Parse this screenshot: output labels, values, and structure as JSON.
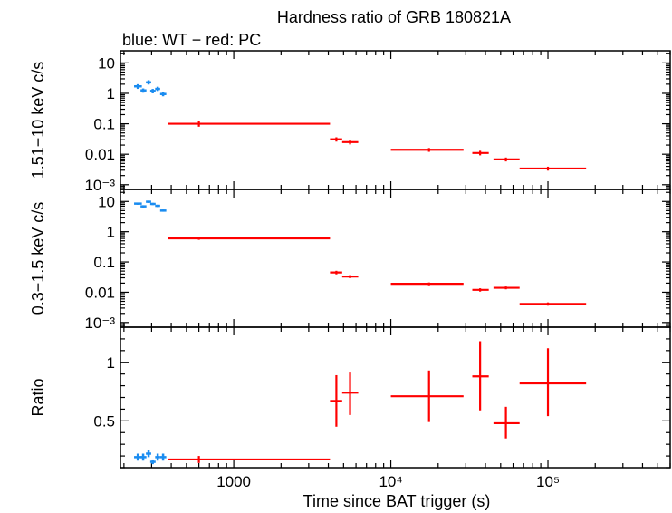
{
  "title": "Hardness ratio of GRB 180821A",
  "subtitle": "blue: WT − red: PC",
  "xlabel": "Time since BAT trigger (s)",
  "colors": {
    "WT": "#1a8cf0",
    "PC": "#ff0000",
    "axis": "#000000"
  },
  "chart_data": [
    {
      "type": "scatter",
      "panel": "hard",
      "ylabel": "1.51−10 keV c/s",
      "yscale": "log",
      "xscale": "log",
      "xlim": [
        190,
        600000
      ],
      "ylim": [
        0.0007,
        25
      ],
      "yticks": [
        {
          "v": 10,
          "label": "10"
        },
        {
          "v": 1,
          "label": "1"
        },
        {
          "v": 0.1,
          "label": "0.1"
        },
        {
          "v": 0.01,
          "label": "0.01"
        },
        {
          "v": 0.001,
          "label": "10⁻³"
        }
      ],
      "series": [
        {
          "name": "WT",
          "points": [
            {
              "x": 245,
              "xlo": 232,
              "xhi": 260,
              "y": 1.7,
              "ylo": 1.4,
              "yhi": 2.0
            },
            {
              "x": 265,
              "xlo": 255,
              "xhi": 278,
              "y": 1.25,
              "ylo": 1.05,
              "yhi": 1.45
            },
            {
              "x": 287,
              "xlo": 276,
              "xhi": 298,
              "y": 2.3,
              "ylo": 1.95,
              "yhi": 2.7
            },
            {
              "x": 305,
              "xlo": 294,
              "xhi": 318,
              "y": 1.2,
              "ylo": 1.0,
              "yhi": 1.4
            },
            {
              "x": 328,
              "xlo": 316,
              "xhi": 340,
              "y": 1.4,
              "ylo": 1.2,
              "yhi": 1.65
            },
            {
              "x": 355,
              "xlo": 340,
              "xhi": 372,
              "y": 0.95,
              "ylo": 0.8,
              "yhi": 1.1
            }
          ]
        },
        {
          "name": "PC",
          "points": [
            {
              "x": 600,
              "xlo": 380,
              "xhi": 4100,
              "y": 0.1,
              "ylo": 0.08,
              "yhi": 0.125
            },
            {
              "x": 4500,
              "xlo": 4100,
              "xhi": 4900,
              "y": 0.031,
              "ylo": 0.026,
              "yhi": 0.036
            },
            {
              "x": 5500,
              "xlo": 4900,
              "xhi": 6200,
              "y": 0.025,
              "ylo": 0.021,
              "yhi": 0.029
            },
            {
              "x": 17500,
              "xlo": 10000,
              "xhi": 29000,
              "y": 0.014,
              "ylo": 0.012,
              "yhi": 0.016
            },
            {
              "x": 37000,
              "xlo": 33000,
              "xhi": 42000,
              "y": 0.011,
              "ylo": 0.0092,
              "yhi": 0.013
            },
            {
              "x": 54000,
              "xlo": 45000,
              "xhi": 66000,
              "y": 0.0068,
              "ylo": 0.0058,
              "yhi": 0.0078
            },
            {
              "x": 100000,
              "xlo": 66000,
              "xhi": 175000,
              "y": 0.0034,
              "ylo": 0.0029,
              "yhi": 0.0039
            }
          ]
        }
      ]
    },
    {
      "type": "scatter",
      "panel": "soft",
      "ylabel": "0.3−1.5 keV c/s",
      "yscale": "log",
      "xscale": "log",
      "xlim": [
        190,
        600000
      ],
      "ylim": [
        0.0007,
        25
      ],
      "yticks": [
        {
          "v": 10,
          "label": "10"
        },
        {
          "v": 1,
          "label": "1"
        },
        {
          "v": 0.1,
          "label": "0.1"
        },
        {
          "v": 0.01,
          "label": "0.01"
        },
        {
          "v": 0.001,
          "label": "10⁻³"
        }
      ],
      "series": [
        {
          "name": "WT",
          "points": [
            {
              "x": 245,
              "xlo": 232,
              "xhi": 260,
              "y": 8.5,
              "ylo": 7.8,
              "yhi": 9.2
            },
            {
              "x": 265,
              "xlo": 255,
              "xhi": 278,
              "y": 6.9,
              "ylo": 6.3,
              "yhi": 7.5
            },
            {
              "x": 287,
              "xlo": 276,
              "xhi": 298,
              "y": 9.8,
              "ylo": 9.0,
              "yhi": 10.6
            },
            {
              "x": 305,
              "xlo": 294,
              "xhi": 318,
              "y": 8.3,
              "ylo": 7.6,
              "yhi": 9.0
            },
            {
              "x": 328,
              "xlo": 316,
              "xhi": 340,
              "y": 7.2,
              "ylo": 6.6,
              "yhi": 7.8
            },
            {
              "x": 355,
              "xlo": 340,
              "xhi": 372,
              "y": 5.0,
              "ylo": 4.6,
              "yhi": 5.4
            }
          ]
        },
        {
          "name": "PC",
          "points": [
            {
              "x": 600,
              "xlo": 380,
              "xhi": 4100,
              "y": 0.6,
              "ylo": 0.54,
              "yhi": 0.66
            },
            {
              "x": 4500,
              "xlo": 4100,
              "xhi": 4900,
              "y": 0.045,
              "ylo": 0.039,
              "yhi": 0.051
            },
            {
              "x": 5500,
              "xlo": 4900,
              "xhi": 6200,
              "y": 0.033,
              "ylo": 0.029,
              "yhi": 0.037
            },
            {
              "x": 17500,
              "xlo": 10000,
              "xhi": 29000,
              "y": 0.019,
              "ylo": 0.017,
              "yhi": 0.021
            },
            {
              "x": 37000,
              "xlo": 33000,
              "xhi": 42000,
              "y": 0.012,
              "ylo": 0.0105,
              "yhi": 0.0135
            },
            {
              "x": 54000,
              "xlo": 45000,
              "xhi": 66000,
              "y": 0.014,
              "ylo": 0.0125,
              "yhi": 0.0155
            },
            {
              "x": 100000,
              "xlo": 66000,
              "xhi": 175000,
              "y": 0.0041,
              "ylo": 0.0036,
              "yhi": 0.0046
            }
          ]
        }
      ]
    },
    {
      "type": "scatter",
      "panel": "ratio",
      "ylabel": "Ratio",
      "yscale": "linear",
      "xscale": "log",
      "xlim": [
        190,
        600000
      ],
      "ylim": [
        0.1,
        1.3
      ],
      "yticks": [
        {
          "v": 1,
          "label": "1"
        },
        {
          "v": 0.5,
          "label": "0.5"
        }
      ],
      "xticks": [
        {
          "v": 1000,
          "label": "1000"
        },
        {
          "v": 10000,
          "label": "10⁴"
        },
        {
          "v": 100000,
          "label": "10⁵"
        }
      ],
      "series": [
        {
          "name": "WT",
          "points": [
            {
              "x": 245,
              "xlo": 232,
              "xhi": 260,
              "y": 0.19,
              "ylo": 0.16,
              "yhi": 0.22
            },
            {
              "x": 265,
              "xlo": 255,
              "xhi": 278,
              "y": 0.19,
              "ylo": 0.16,
              "yhi": 0.22
            },
            {
              "x": 287,
              "xlo": 276,
              "xhi": 298,
              "y": 0.22,
              "ylo": 0.19,
              "yhi": 0.25
            },
            {
              "x": 305,
              "xlo": 294,
              "xhi": 318,
              "y": 0.15,
              "ylo": 0.13,
              "yhi": 0.17
            },
            {
              "x": 328,
              "xlo": 316,
              "xhi": 340,
              "y": 0.19,
              "ylo": 0.16,
              "yhi": 0.22
            },
            {
              "x": 355,
              "xlo": 340,
              "xhi": 372,
              "y": 0.19,
              "ylo": 0.16,
              "yhi": 0.22
            }
          ]
        },
        {
          "name": "PC",
          "points": [
            {
              "x": 600,
              "xlo": 380,
              "xhi": 4100,
              "y": 0.17,
              "ylo": 0.14,
              "yhi": 0.2
            },
            {
              "x": 4500,
              "xlo": 4100,
              "xhi": 4900,
              "y": 0.67,
              "ylo": 0.45,
              "yhi": 0.89
            },
            {
              "x": 5500,
              "xlo": 4900,
              "xhi": 6200,
              "y": 0.74,
              "ylo": 0.55,
              "yhi": 0.92
            },
            {
              "x": 17500,
              "xlo": 10000,
              "xhi": 29000,
              "y": 0.71,
              "ylo": 0.49,
              "yhi": 0.93
            },
            {
              "x": 37000,
              "xlo": 33000,
              "xhi": 42000,
              "y": 0.88,
              "ylo": 0.59,
              "yhi": 1.18
            },
            {
              "x": 54000,
              "xlo": 45000,
              "xhi": 66000,
              "y": 0.48,
              "ylo": 0.35,
              "yhi": 0.62
            },
            {
              "x": 100000,
              "xlo": 66000,
              "xhi": 175000,
              "y": 0.82,
              "ylo": 0.54,
              "yhi": 1.12
            }
          ]
        }
      ]
    }
  ]
}
